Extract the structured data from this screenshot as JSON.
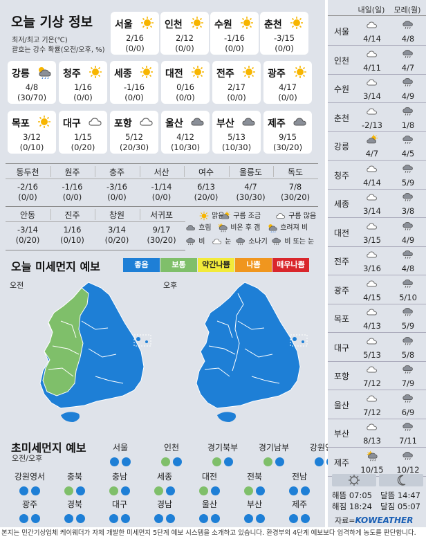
{
  "header": {
    "title": "오늘 기상 정보",
    "note1": "최저/최고 기온(℃)",
    "note2": "괄호는 강수 확률(오전/오후, %)"
  },
  "cards": [
    {
      "name": "서울",
      "temp": "2/16",
      "pop": "(0/0)",
      "icon": "sun"
    },
    {
      "name": "인천",
      "temp": "2/12",
      "pop": "(0/0)",
      "icon": "sun"
    },
    {
      "name": "수원",
      "temp": "-1/16",
      "pop": "(0/0)",
      "icon": "sun"
    },
    {
      "name": "춘천",
      "temp": "-3/15",
      "pop": "(0/0)",
      "icon": "sun"
    },
    {
      "name": "강릉",
      "temp": "4/8",
      "pop": "(30/70)",
      "icon": "sun-cloud-rain"
    },
    {
      "name": "청주",
      "temp": "1/16",
      "pop": "(0/0)",
      "icon": "sun"
    },
    {
      "name": "세종",
      "temp": "-1/16",
      "pop": "(0/0)",
      "icon": "sun"
    },
    {
      "name": "대전",
      "temp": "0/16",
      "pop": "(0/0)",
      "icon": "sun"
    },
    {
      "name": "전주",
      "temp": "2/17",
      "pop": "(0/0)",
      "icon": "sun"
    },
    {
      "name": "광주",
      "temp": "4/17",
      "pop": "(0/0)",
      "icon": "sun"
    },
    {
      "name": "목포",
      "temp": "3/12",
      "pop": "(0/10)",
      "icon": "sun"
    },
    {
      "name": "대구",
      "temp": "1/15",
      "pop": "(0/20)",
      "icon": "cloud"
    },
    {
      "name": "포항",
      "temp": "5/12",
      "pop": "(20/30)",
      "icon": "cloud"
    },
    {
      "name": "울산",
      "temp": "4/12",
      "pop": "(10/30)",
      "icon": "dark-cloud"
    },
    {
      "name": "부산",
      "temp": "5/13",
      "pop": "(10/30)",
      "icon": "dark-cloud"
    },
    {
      "name": "제주",
      "temp": "9/15",
      "pop": "(30/20)",
      "icon": "dark-cloud"
    }
  ],
  "cities_small": [
    {
      "name": "동두천",
      "temp": "-2/16",
      "pop": "(0/0)"
    },
    {
      "name": "원주",
      "temp": "-1/16",
      "pop": "(0/0)"
    },
    {
      "name": "충주",
      "temp": "-3/16",
      "pop": "(0/0)"
    },
    {
      "name": "서산",
      "temp": "-1/14",
      "pop": "(0/0)"
    },
    {
      "name": "여수",
      "temp": "6/13",
      "pop": "(20/0)"
    },
    {
      "name": "울릉도",
      "temp": "4/7",
      "pop": "(30/30)"
    },
    {
      "name": "독도",
      "temp": "7/8",
      "pop": "(30/20)"
    },
    {
      "name": "안동",
      "temp": "-3/14",
      "pop": "(0/20)"
    },
    {
      "name": "진주",
      "temp": "1/16",
      "pop": "(0/10)"
    },
    {
      "name": "창원",
      "temp": "3/14",
      "pop": "(0/20)"
    },
    {
      "name": "서귀포",
      "temp": "9/17",
      "pop": "(30/20)"
    }
  ],
  "legend": {
    "clear": "맑음",
    "few_clouds": "구름 조금",
    "many_clouds": "구름 많음",
    "overcast": "흐림",
    "rain_then_clear": "비온 후 갬",
    "cloudy_rain": "흐려져 비",
    "rain": "비",
    "snow": "눈",
    "shower": "소나기",
    "rain_or_snow": "비 또는 눈"
  },
  "pm10": {
    "title": "오늘 미세먼지 예보",
    "levels": [
      {
        "label": "좋음",
        "color": "#1e7fd6"
      },
      {
        "label": "보통",
        "color": "#7fbf6a"
      },
      {
        "label": "약간나쁨",
        "color": "#f2ea3a"
      },
      {
        "label": "나쁨",
        "color": "#f0961e"
      },
      {
        "label": "매우나쁨",
        "color": "#d9262c"
      }
    ],
    "am_label": "오전",
    "pm_label": "오후"
  },
  "pm25": {
    "title": "초미세먼지 예보",
    "sub": "오전/오후",
    "regions": [
      {
        "name": "서울",
        "am": "good",
        "pm": "good"
      },
      {
        "name": "인천",
        "am": "normal",
        "pm": "good"
      },
      {
        "name": "경기북부",
        "am": "normal",
        "pm": "good"
      },
      {
        "name": "경기남부",
        "am": "normal",
        "pm": "good"
      },
      {
        "name": "강원영동",
        "am": "good",
        "pm": "good"
      },
      {
        "name": "강원영서",
        "am": "good",
        "pm": "good"
      },
      {
        "name": "충북",
        "am": "normal",
        "pm": "good"
      },
      {
        "name": "충남",
        "am": "normal",
        "pm": "good"
      },
      {
        "name": "세종",
        "am": "normal",
        "pm": "good"
      },
      {
        "name": "대전",
        "am": "normal",
        "pm": "good"
      },
      {
        "name": "전북",
        "am": "normal",
        "pm": "good"
      },
      {
        "name": "전남",
        "am": "good",
        "pm": "good"
      },
      {
        "name": "광주",
        "am": "good",
        "pm": "good"
      },
      {
        "name": "경북",
        "am": "good",
        "pm": "good"
      },
      {
        "name": "대구",
        "am": "good",
        "pm": "good"
      },
      {
        "name": "경남",
        "am": "good",
        "pm": "good"
      },
      {
        "name": "울산",
        "am": "good",
        "pm": "good"
      },
      {
        "name": "부산",
        "am": "good",
        "pm": "good"
      },
      {
        "name": "제주",
        "am": "good",
        "pm": "good"
      }
    ]
  },
  "forecast": {
    "day1": "내일(일)",
    "day2": "모레(월)",
    "rows": [
      {
        "city": "서울",
        "d1": "4/14",
        "d1i": "cloud",
        "d2": "4/8",
        "d2i": "rain"
      },
      {
        "city": "인천",
        "d1": "4/11",
        "d1i": "cloud",
        "d2": "4/7",
        "d2i": "rain"
      },
      {
        "city": "수원",
        "d1": "3/14",
        "d1i": "cloud",
        "d2": "4/9",
        "d2i": "rain"
      },
      {
        "city": "춘천",
        "d1": "-2/13",
        "d1i": "cloud",
        "d2": "1/8",
        "d2i": "rain"
      },
      {
        "city": "강릉",
        "d1": "4/7",
        "d1i": "sun-cloud",
        "d2": "4/5",
        "d2i": "rain"
      },
      {
        "city": "청주",
        "d1": "4/14",
        "d1i": "cloud",
        "d2": "5/9",
        "d2i": "rain"
      },
      {
        "city": "세종",
        "d1": "3/14",
        "d1i": "cloud",
        "d2": "3/8",
        "d2i": "rain"
      },
      {
        "city": "대전",
        "d1": "3/15",
        "d1i": "cloud",
        "d2": "4/9",
        "d2i": "rain"
      },
      {
        "city": "전주",
        "d1": "3/16",
        "d1i": "cloud",
        "d2": "4/8",
        "d2i": "rain"
      },
      {
        "city": "광주",
        "d1": "4/15",
        "d1i": "cloud",
        "d2": "5/10",
        "d2i": "rain"
      },
      {
        "city": "목포",
        "d1": "4/13",
        "d1i": "cloud",
        "d2": "5/9",
        "d2i": "rain"
      },
      {
        "city": "대구",
        "d1": "5/13",
        "d1i": "cloud",
        "d2": "5/8",
        "d2i": "rain"
      },
      {
        "city": "포항",
        "d1": "7/12",
        "d1i": "cloud",
        "d2": "7/9",
        "d2i": "rain"
      },
      {
        "city": "울산",
        "d1": "7/12",
        "d1i": "cloud",
        "d2": "6/9",
        "d2i": "rain"
      },
      {
        "city": "부산",
        "d1": "8/13",
        "d1i": "cloud",
        "d2": "7/11",
        "d2i": "rain"
      },
      {
        "city": "제주",
        "d1": "10/15",
        "d1i": "sun-rain",
        "d2": "10/12",
        "d2i": "rain"
      }
    ]
  },
  "sun": {
    "sunrise_label": "해뜸",
    "sunrise": "07:05",
    "sunset_label": "해짐",
    "sunset": "18:24",
    "moonrise_label": "달뜸",
    "moonrise": "14:47",
    "moonset_label": "달짐",
    "moonset": "05:07"
  },
  "source": {
    "label": "자료=",
    "brand": "KOWEATHER"
  },
  "footer": "본지는 민간기상업체 케이웨더가 자체 개발한 미세먼지 5단계 예보 시스템을 소개하고 있습니다. 환경부의 4단계 예보보다 엄격하게 농도를 판단합니다."
}
